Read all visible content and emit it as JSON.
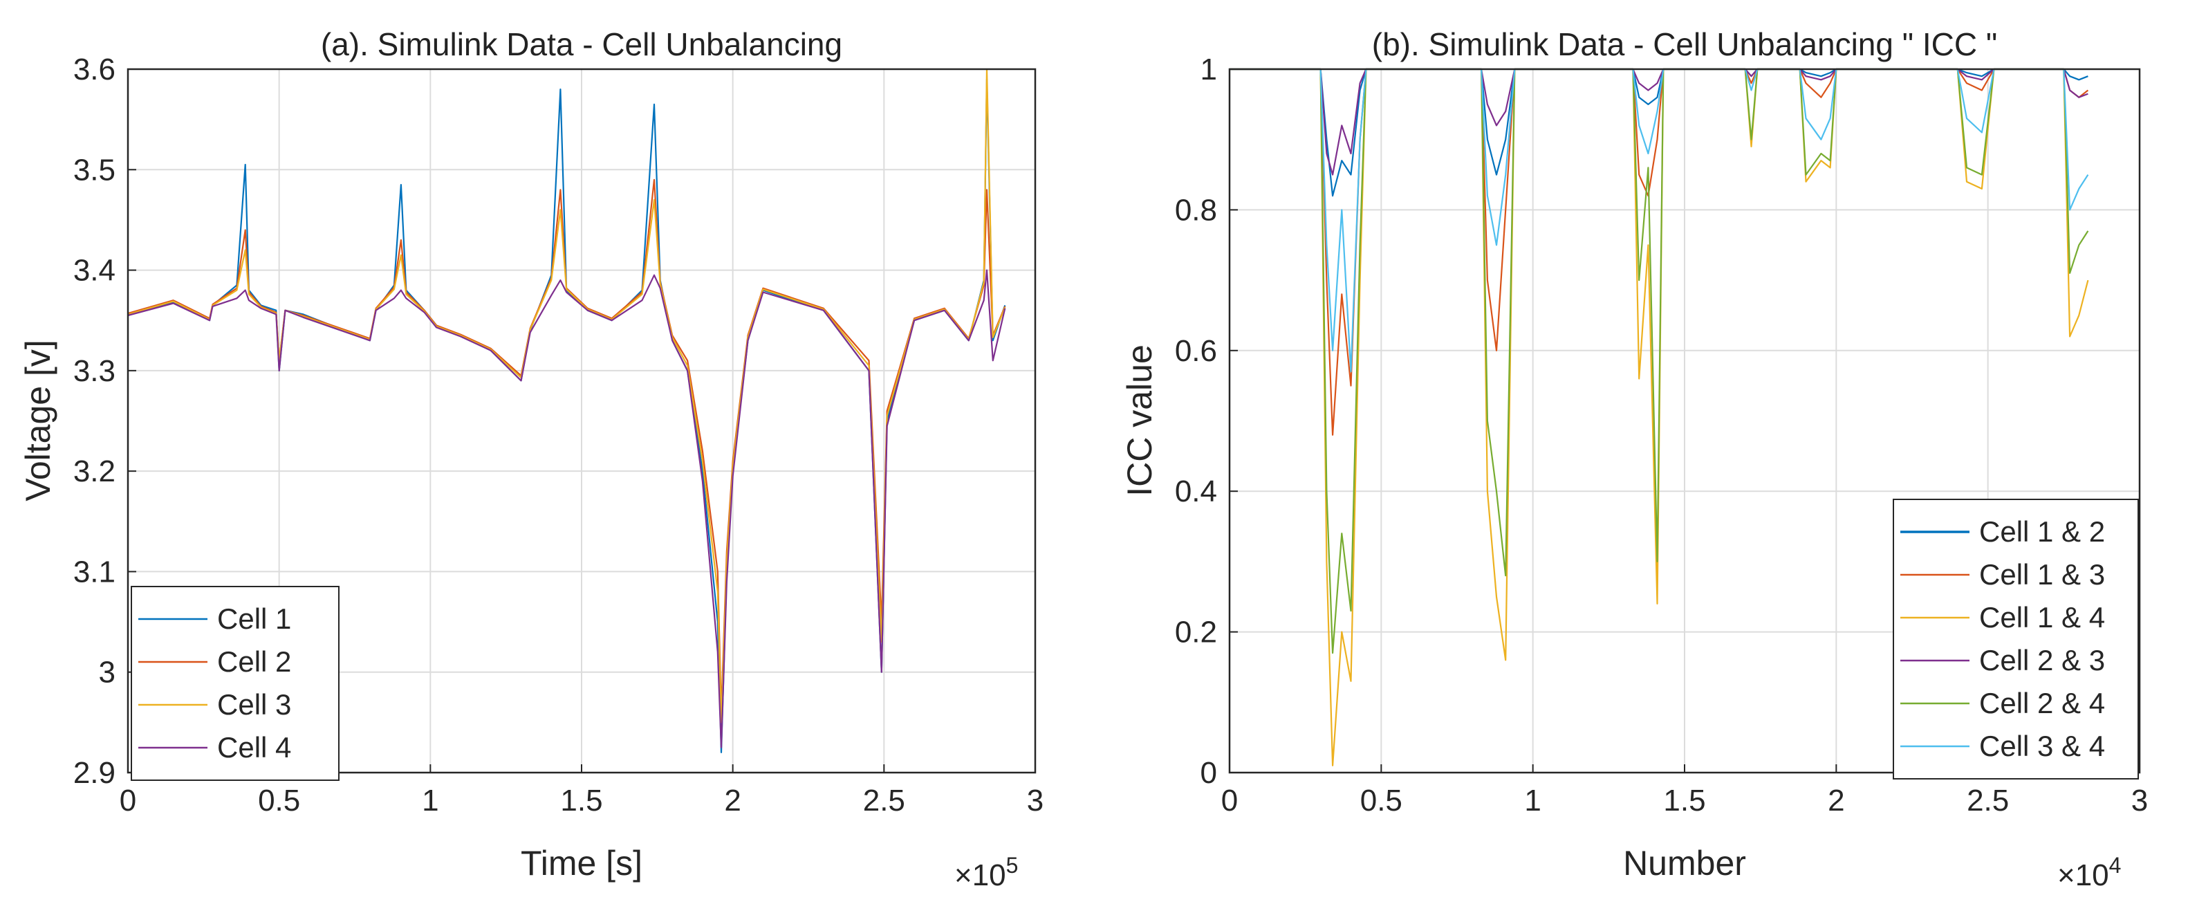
{
  "chart_data": [
    {
      "id": "a",
      "type": "line",
      "title": "(a). Simulink Data - Cell Unbalancing",
      "xlabel": "Time [s]",
      "ylabel": "Voltage [v]",
      "x_multiplier": "×10",
      "x_exponent": "5",
      "xlim": [
        0,
        3
      ],
      "ylim": [
        2.9,
        3.6
      ],
      "xticks": [
        0,
        0.5,
        1,
        1.5,
        2,
        2.5,
        3
      ],
      "xtick_labels": [
        "0",
        "0.5",
        "1",
        "1.5",
        "2",
        "2.5",
        "3"
      ],
      "yticks": [
        2.9,
        3.0,
        3.1,
        3.2,
        3.3,
        3.4,
        3.5,
        3.6
      ],
      "ytick_labels": [
        "2.9",
        "3",
        "3.1",
        "3.2",
        "3.3",
        "3.4",
        "3.5",
        "3.6"
      ],
      "grid": true,
      "legend_location": "bottom-left",
      "series": [
        {
          "name": "Cell 1",
          "color": "#0072BD",
          "x": [
            0,
            0.15,
            0.27,
            0.28,
            0.36,
            0.388,
            0.4,
            0.44,
            0.49,
            0.5,
            0.52,
            0.58,
            0.8,
            0.82,
            0.88,
            0.903,
            0.92,
            0.98,
            1.02,
            1.1,
            1.2,
            1.3,
            1.33,
            1.4,
            1.43,
            1.45,
            1.52,
            1.6,
            1.7,
            1.74,
            1.76,
            1.8,
            1.85,
            1.9,
            1.95,
            1.962,
            1.98,
            2.0,
            2.05,
            2.1,
            2.3,
            2.45,
            2.492,
            2.51,
            2.6,
            2.7,
            2.78,
            2.83,
            2.84,
            2.86,
            2.9
          ],
          "y": [
            3.355,
            3.368,
            3.35,
            3.365,
            3.385,
            3.505,
            3.38,
            3.365,
            3.36,
            3.3,
            3.36,
            3.356,
            3.33,
            3.36,
            3.385,
            3.485,
            3.38,
            3.36,
            3.345,
            3.335,
            3.32,
            3.29,
            3.34,
            3.395,
            3.58,
            3.38,
            3.36,
            3.35,
            3.38,
            3.565,
            3.39,
            3.33,
            3.3,
            3.2,
            3.05,
            2.92,
            3.1,
            3.2,
            3.33,
            3.38,
            3.36,
            3.3,
            3.0,
            3.25,
            3.35,
            3.36,
            3.33,
            3.39,
            3.59,
            3.33,
            3.365
          ]
        },
        {
          "name": "Cell 2",
          "color": "#D95319",
          "x": [
            0,
            0.15,
            0.27,
            0.28,
            0.36,
            0.388,
            0.4,
            0.44,
            0.49,
            0.5,
            0.52,
            0.58,
            0.8,
            0.82,
            0.88,
            0.903,
            0.92,
            0.98,
            1.02,
            1.1,
            1.2,
            1.3,
            1.33,
            1.4,
            1.43,
            1.45,
            1.52,
            1.6,
            1.7,
            1.74,
            1.76,
            1.8,
            1.85,
            1.9,
            1.95,
            1.962,
            1.98,
            2.0,
            2.05,
            2.1,
            2.3,
            2.45,
            2.492,
            2.51,
            2.6,
            2.7,
            2.78,
            2.83,
            2.84,
            2.86,
            2.9
          ],
          "y": [
            3.357,
            3.37,
            3.352,
            3.366,
            3.382,
            3.44,
            3.378,
            3.364,
            3.358,
            3.31,
            3.36,
            3.355,
            3.332,
            3.362,
            3.383,
            3.43,
            3.378,
            3.36,
            3.345,
            3.336,
            3.322,
            3.295,
            3.342,
            3.392,
            3.48,
            3.382,
            3.362,
            3.352,
            3.378,
            3.49,
            3.388,
            3.335,
            3.31,
            3.22,
            3.1,
            2.96,
            3.12,
            3.21,
            3.335,
            3.382,
            3.362,
            3.31,
            3.05,
            3.26,
            3.352,
            3.362,
            3.332,
            3.385,
            3.48,
            3.335,
            3.364
          ]
        },
        {
          "name": "Cell 3",
          "color": "#EDB120",
          "x": [
            0,
            0.15,
            0.27,
            0.28,
            0.36,
            0.388,
            0.4,
            0.44,
            0.49,
            0.5,
            0.52,
            0.58,
            0.8,
            0.82,
            0.88,
            0.903,
            0.92,
            0.98,
            1.02,
            1.1,
            1.2,
            1.3,
            1.33,
            1.4,
            1.43,
            1.45,
            1.52,
            1.6,
            1.7,
            1.74,
            1.76,
            1.8,
            1.85,
            1.9,
            1.95,
            1.962,
            1.98,
            2.0,
            2.05,
            2.1,
            2.3,
            2.45,
            2.492,
            2.51,
            2.6,
            2.7,
            2.78,
            2.83,
            2.84,
            2.86,
            2.9
          ],
          "y": [
            3.356,
            3.369,
            3.351,
            3.365,
            3.38,
            3.42,
            3.376,
            3.363,
            3.357,
            3.31,
            3.36,
            3.354,
            3.331,
            3.361,
            3.381,
            3.415,
            3.376,
            3.359,
            3.344,
            3.335,
            3.321,
            3.293,
            3.341,
            3.39,
            3.46,
            3.381,
            3.361,
            3.351,
            3.376,
            3.47,
            3.386,
            3.333,
            3.305,
            3.21,
            3.08,
            2.95,
            3.11,
            3.205,
            3.333,
            3.381,
            3.361,
            3.305,
            3.03,
            3.255,
            3.351,
            3.361,
            3.331,
            3.388,
            3.6,
            3.333,
            3.363
          ]
        },
        {
          "name": "Cell 4",
          "color": "#7E2F8E",
          "x": [
            0,
            0.15,
            0.27,
            0.28,
            0.36,
            0.388,
            0.4,
            0.44,
            0.49,
            0.5,
            0.52,
            0.58,
            0.8,
            0.82,
            0.88,
            0.903,
            0.92,
            0.98,
            1.02,
            1.1,
            1.2,
            1.3,
            1.33,
            1.4,
            1.43,
            1.45,
            1.52,
            1.6,
            1.7,
            1.74,
            1.76,
            1.8,
            1.85,
            1.9,
            1.95,
            1.962,
            1.98,
            2.0,
            2.05,
            2.1,
            2.3,
            2.45,
            2.492,
            2.51,
            2.6,
            2.7,
            2.78,
            2.83,
            2.84,
            2.86,
            2.9
          ],
          "y": [
            3.355,
            3.367,
            3.35,
            3.364,
            3.372,
            3.38,
            3.37,
            3.362,
            3.356,
            3.3,
            3.36,
            3.353,
            3.33,
            3.36,
            3.372,
            3.38,
            3.372,
            3.358,
            3.343,
            3.334,
            3.32,
            3.29,
            3.338,
            3.375,
            3.39,
            3.378,
            3.36,
            3.35,
            3.37,
            3.395,
            3.382,
            3.33,
            3.3,
            3.19,
            3.02,
            2.925,
            3.09,
            3.195,
            3.33,
            3.378,
            3.36,
            3.3,
            3.0,
            3.245,
            3.35,
            3.36,
            3.33,
            3.37,
            3.4,
            3.31,
            3.362
          ]
        }
      ]
    },
    {
      "id": "b",
      "type": "line",
      "title": "(b). Simulink Data - Cell Unbalancing \" ICC \"",
      "xlabel": "Number",
      "ylabel": "ICC value",
      "x_multiplier": "×10",
      "x_exponent": "4",
      "xlim": [
        0,
        3
      ],
      "ylim": [
        0,
        1
      ],
      "xticks": [
        0,
        0.5,
        1,
        1.5,
        2,
        2.5,
        3
      ],
      "xtick_labels": [
        "0",
        "0.5",
        "1",
        "1.5",
        "2",
        "2.5",
        "3"
      ],
      "yticks": [
        0,
        0.2,
        0.4,
        0.6,
        0.8,
        1
      ],
      "ytick_labels": [
        "0",
        "0.2",
        "0.4",
        "0.6",
        "0.8",
        "1"
      ],
      "grid": true,
      "legend_location": "bottom-right",
      "series": [
        {
          "name": "Cell 1 & 2",
          "color": "#0072BD",
          "x": [
            0,
            0.3,
            0.32,
            0.34,
            0.37,
            0.4,
            0.43,
            0.45,
            0.83,
            0.85,
            0.88,
            0.91,
            0.94,
            1.33,
            1.35,
            1.38,
            1.41,
            1.43,
            1.7,
            1.72,
            1.74,
            1.88,
            1.9,
            1.95,
            1.98,
            2.0,
            2.4,
            2.43,
            2.48,
            2.52,
            2.7,
            2.75,
            2.77,
            2.8,
            2.83
          ],
          "y": [
            1,
            1,
            0.9,
            0.82,
            0.87,
            0.85,
            0.97,
            1,
            1,
            0.9,
            0.85,
            0.9,
            1,
            1,
            0.96,
            0.95,
            0.96,
            1,
            1,
            0.99,
            1,
            1,
            0.995,
            0.99,
            0.995,
            1,
            1,
            0.995,
            0.99,
            1,
            1,
            1,
            0.99,
            0.985,
            0.99
          ]
        },
        {
          "name": "Cell 1 & 3",
          "color": "#D95319",
          "x": [
            0,
            0.3,
            0.32,
            0.34,
            0.37,
            0.4,
            0.43,
            0.45,
            0.83,
            0.85,
            0.88,
            0.91,
            0.94,
            1.33,
            1.35,
            1.38,
            1.41,
            1.43,
            1.7,
            1.72,
            1.74,
            1.88,
            1.9,
            1.95,
            1.98,
            2.0,
            2.4,
            2.43,
            2.48,
            2.52,
            2.7,
            2.75,
            2.77,
            2.8,
            2.83
          ],
          "y": [
            1,
            1,
            0.7,
            0.48,
            0.68,
            0.55,
            0.9,
            1,
            1,
            0.7,
            0.6,
            0.8,
            1,
            1,
            0.85,
            0.82,
            0.9,
            1,
            1,
            0.98,
            1,
            1,
            0.98,
            0.96,
            0.98,
            1,
            1,
            0.98,
            0.97,
            1,
            1,
            1,
            0.97,
            0.96,
            0.97
          ]
        },
        {
          "name": "Cell 1 & 4",
          "color": "#EDB120",
          "x": [
            0,
            0.3,
            0.32,
            0.34,
            0.37,
            0.4,
            0.43,
            0.45,
            0.83,
            0.85,
            0.88,
            0.91,
            0.94,
            1.33,
            1.35,
            1.38,
            1.41,
            1.43,
            1.7,
            1.72,
            1.74,
            1.88,
            1.9,
            1.95,
            1.98,
            2.0,
            2.4,
            2.43,
            2.48,
            2.52,
            2.7,
            2.75,
            2.77,
            2.8,
            2.83
          ],
          "y": [
            1,
            1,
            0.3,
            0.01,
            0.2,
            0.13,
            0.7,
            1,
            1,
            0.4,
            0.25,
            0.16,
            1,
            1,
            0.56,
            0.75,
            0.24,
            1,
            1,
            0.89,
            1,
            1,
            0.84,
            0.87,
            0.86,
            1,
            1,
            0.84,
            0.83,
            1,
            1,
            1,
            0.62,
            0.65,
            0.7
          ]
        },
        {
          "name": "Cell 2 & 3",
          "color": "#7E2F8E",
          "x": [
            0,
            0.3,
            0.32,
            0.34,
            0.37,
            0.4,
            0.43,
            0.45,
            0.83,
            0.85,
            0.88,
            0.91,
            0.94,
            1.33,
            1.35,
            1.38,
            1.41,
            1.43,
            1.7,
            1.72,
            1.74,
            1.88,
            1.9,
            1.95,
            1.98,
            2.0,
            2.4,
            2.43,
            2.48,
            2.52,
            2.7,
            2.75,
            2.77,
            2.8,
            2.83
          ],
          "y": [
            1,
            1,
            0.88,
            0.85,
            0.92,
            0.88,
            0.98,
            1,
            1,
            0.95,
            0.92,
            0.94,
            1,
            1,
            0.98,
            0.97,
            0.98,
            1,
            1,
            0.99,
            1,
            1,
            0.99,
            0.985,
            0.99,
            1,
            1,
            0.99,
            0.985,
            1,
            1,
            1,
            0.97,
            0.96,
            0.965
          ]
        },
        {
          "name": "Cell 2 & 4",
          "color": "#77AC30",
          "x": [
            0,
            0.3,
            0.32,
            0.34,
            0.37,
            0.4,
            0.43,
            0.45,
            0.83,
            0.85,
            0.88,
            0.91,
            0.94,
            1.33,
            1.35,
            1.38,
            1.41,
            1.43,
            1.7,
            1.72,
            1.74,
            1.88,
            1.9,
            1.95,
            1.98,
            2.0,
            2.4,
            2.43,
            2.48,
            2.52,
            2.7,
            2.75,
            2.77,
            2.8,
            2.83
          ],
          "y": [
            1,
            1,
            0.4,
            0.17,
            0.34,
            0.23,
            0.75,
            1,
            1,
            0.5,
            0.4,
            0.28,
            1,
            1,
            0.7,
            0.86,
            0.3,
            1,
            1,
            0.9,
            1,
            1,
            0.85,
            0.88,
            0.87,
            1,
            1,
            0.86,
            0.85,
            1,
            1,
            1,
            0.71,
            0.75,
            0.77
          ]
        },
        {
          "name": "Cell 3 & 4",
          "color": "#4DBEEE",
          "x": [
            0,
            0.3,
            0.32,
            0.34,
            0.37,
            0.4,
            0.43,
            0.45,
            0.83,
            0.85,
            0.88,
            0.91,
            0.94,
            1.33,
            1.35,
            1.38,
            1.41,
            1.43,
            1.7,
            1.72,
            1.74,
            1.88,
            1.9,
            1.95,
            1.98,
            2.0,
            2.4,
            2.43,
            2.48,
            2.52,
            2.7,
            2.75,
            2.77,
            2.8,
            2.83
          ],
          "y": [
            1,
            1,
            0.75,
            0.6,
            0.8,
            0.57,
            0.9,
            1,
            1,
            0.82,
            0.75,
            0.85,
            1,
            1,
            0.92,
            0.88,
            0.94,
            1,
            1,
            0.97,
            1,
            1,
            0.93,
            0.9,
            0.93,
            1,
            1,
            0.93,
            0.91,
            1,
            1,
            1,
            0.8,
            0.83,
            0.85
          ]
        }
      ]
    }
  ]
}
